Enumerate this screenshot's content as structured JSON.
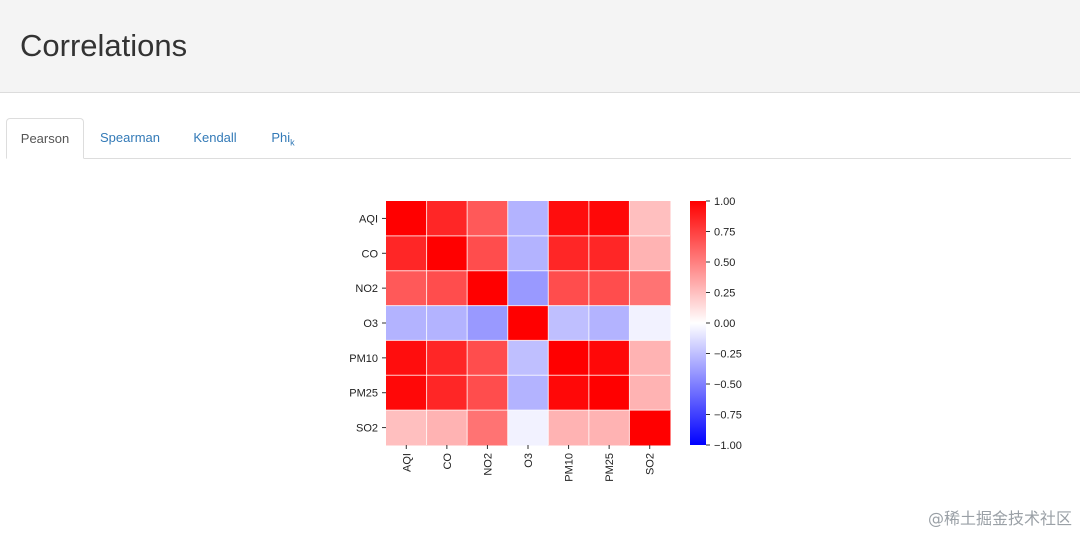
{
  "header": {
    "title": "Correlations"
  },
  "tabs": [
    {
      "label": "Pearson",
      "active": true
    },
    {
      "label": "Spearman",
      "active": false
    },
    {
      "label": "Kendall",
      "active": false
    },
    {
      "label": "Phi",
      "sub": "k",
      "active": false
    }
  ],
  "chart_data": {
    "type": "heatmap",
    "x_categories": [
      "AQI",
      "CO",
      "NO2",
      "O3",
      "PM10",
      "PM25",
      "SO2"
    ],
    "y_categories": [
      "AQI",
      "CO",
      "NO2",
      "O3",
      "PM10",
      "PM25",
      "SO2"
    ],
    "values": [
      [
        1.0,
        0.85,
        0.65,
        -0.3,
        0.95,
        0.97,
        0.25
      ],
      [
        0.85,
        1.0,
        0.7,
        -0.3,
        0.85,
        0.85,
        0.3
      ],
      [
        0.65,
        0.7,
        1.0,
        -0.4,
        0.7,
        0.7,
        0.55
      ],
      [
        -0.3,
        -0.3,
        -0.4,
        1.0,
        -0.25,
        -0.3,
        -0.05
      ],
      [
        0.95,
        0.85,
        0.7,
        -0.25,
        1.0,
        0.97,
        0.3
      ],
      [
        0.97,
        0.85,
        0.7,
        -0.3,
        0.97,
        1.0,
        0.3
      ],
      [
        0.25,
        0.3,
        0.55,
        -0.05,
        0.3,
        0.3,
        1.0
      ]
    ],
    "colorbar_ticks": [
      "1.00",
      "0.75",
      "0.50",
      "0.25",
      "0.00",
      "−0.25",
      "−0.50",
      "−0.75",
      "−1.00"
    ],
    "vmin": -1,
    "vmax": 1,
    "colormap": "bwr",
    "colors": {
      "negative": "#0000ff",
      "neutral": "#ffffff",
      "positive": "#ff0000"
    }
  },
  "watermark": "@稀土掘金技术社区"
}
